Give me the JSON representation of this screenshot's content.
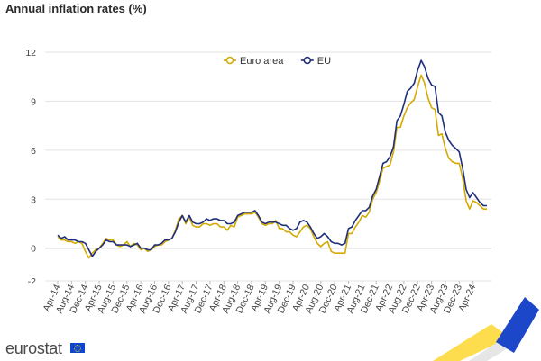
{
  "title": "Annual inflation rates (%)",
  "logo_text": "eurostat",
  "colors": {
    "euro_area": "#d4a900",
    "eu": "#1f2f7a",
    "grid": "#e3e3e3",
    "zero_line": "#bdbdbd"
  },
  "chart_data": {
    "type": "line",
    "title": "Annual inflation rates (%)",
    "xlabel": "",
    "ylabel": "",
    "ylim": [
      -2,
      12
    ],
    "yticks": [
      -2,
      0,
      3,
      6,
      9,
      12
    ],
    "grid": true,
    "legend_position": "top-center",
    "x_tick_labels": [
      "Apr-14",
      "Aug-14",
      "Dec-14",
      "Apr-15",
      "Aug-15",
      "Dec-15",
      "Apr-16",
      "Aug-16",
      "Dec-16",
      "Apr-17",
      "Aug-17",
      "Dec-17",
      "Apr-18",
      "Aug-18",
      "Dec-18",
      "Apr-19",
      "Aug-19",
      "Dec-19",
      "Apr-20",
      "Aug-20",
      "Dec-20",
      "Apr-21",
      "Aug-21",
      "Dec-21",
      "Apr-22",
      "Aug-22",
      "Dec-22",
      "Apr-23",
      "Aug-23",
      "Dec-23",
      "Apr-24"
    ],
    "x_start": "2014-04",
    "x_end": "2024-04",
    "series": [
      {
        "name": "Euro area",
        "color": "#d4a900",
        "values": [
          0.7,
          0.5,
          0.5,
          0.4,
          0.4,
          0.3,
          0.4,
          0.3,
          -0.2,
          -0.6,
          -0.3,
          -0.1,
          0.0,
          0.3,
          0.6,
          0.5,
          0.5,
          0.2,
          0.1,
          0.2,
          0.4,
          0.1,
          0.3,
          0.2,
          -0.1,
          0.0,
          -0.2,
          -0.1,
          0.1,
          0.2,
          0.2,
          0.4,
          0.5,
          0.6,
          1.1,
          1.8,
          2.0,
          1.5,
          1.9,
          1.4,
          1.3,
          1.3,
          1.5,
          1.5,
          1.4,
          1.5,
          1.5,
          1.3,
          1.3,
          1.1,
          1.4,
          1.3,
          1.9,
          2.0,
          2.1,
          2.1,
          2.1,
          2.2,
          1.9,
          1.5,
          1.4,
          1.5,
          1.5,
          1.7,
          1.2,
          1.2,
          1.0,
          1.0,
          0.8,
          0.7,
          1.0,
          1.3,
          1.4,
          1.2,
          0.7,
          0.3,
          0.1,
          0.3,
          0.4,
          -0.2,
          -0.3,
          -0.3,
          -0.3,
          -0.3,
          0.9,
          0.9,
          1.3,
          1.6,
          2.0,
          1.9,
          2.2,
          3.0,
          3.4,
          4.1,
          4.9,
          5.0,
          5.1,
          5.9,
          7.4,
          7.4,
          8.1,
          8.6,
          8.9,
          9.1,
          9.9,
          10.6,
          10.1,
          9.2,
          8.6,
          8.5,
          6.9,
          7.0,
          6.1,
          5.5,
          5.3,
          5.2,
          5.2,
          4.3,
          2.9,
          2.4,
          2.9,
          2.8,
          2.6,
          2.4,
          2.4
        ]
      },
      {
        "name": "EU",
        "color": "#1f2f7a",
        "values": [
          0.8,
          0.6,
          0.7,
          0.5,
          0.5,
          0.5,
          0.4,
          0.4,
          0.3,
          -0.1,
          -0.5,
          -0.2,
          0.0,
          0.2,
          0.5,
          0.4,
          0.4,
          0.2,
          0.2,
          0.2,
          0.2,
          0.1,
          0.2,
          0.3,
          0.0,
          0.0,
          -0.1,
          -0.1,
          0.2,
          0.2,
          0.3,
          0.5,
          0.5,
          0.6,
          1.0,
          1.6,
          2.0,
          1.6,
          2.0,
          1.6,
          1.5,
          1.5,
          1.6,
          1.8,
          1.7,
          1.8,
          1.8,
          1.7,
          1.7,
          1.5,
          1.5,
          1.6,
          2.0,
          2.1,
          2.2,
          2.2,
          2.2,
          2.3,
          2.0,
          1.6,
          1.5,
          1.6,
          1.6,
          1.6,
          1.5,
          1.4,
          1.4,
          1.2,
          1.1,
          1.2,
          1.6,
          1.7,
          1.6,
          1.3,
          0.9,
          0.6,
          0.7,
          0.9,
          0.7,
          0.4,
          0.3,
          0.3,
          0.2,
          0.3,
          1.2,
          1.3,
          1.7,
          2.0,
          2.3,
          2.3,
          2.5,
          3.2,
          3.6,
          4.4,
          5.2,
          5.3,
          5.6,
          6.2,
          7.8,
          8.1,
          8.8,
          9.6,
          9.8,
          10.1,
          10.9,
          11.5,
          11.1,
          10.4,
          10.0,
          9.9,
          8.3,
          8.1,
          7.1,
          6.6,
          6.3,
          6.1,
          5.9,
          4.9,
          3.6,
          3.1,
          3.4,
          3.1,
          2.8,
          2.6,
          2.6
        ]
      }
    ]
  }
}
